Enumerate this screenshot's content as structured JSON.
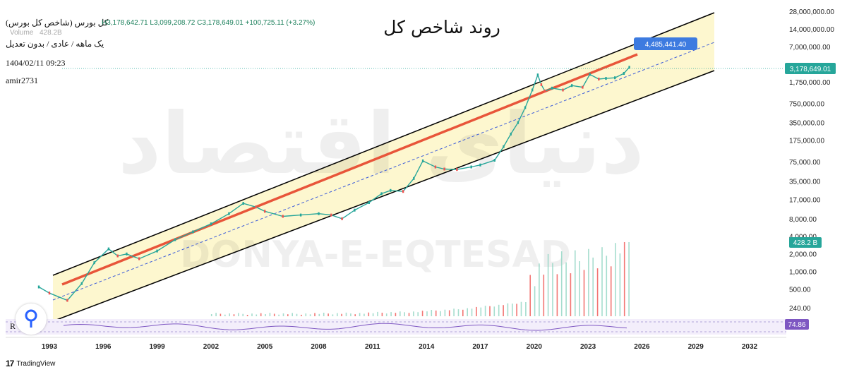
{
  "header": {
    "title": "روند شاخص کل",
    "instrument": "کل بورس (شاخص کل بورس)",
    "ohlc": "H3,178,642.71  L3,099,208.72  C3,178,649.01  +100,725.11 (+3.27%)",
    "volume_label": "Volume",
    "volume_value": "428.2B",
    "timeframe": "یک ماهه / عادی / بدون تعدیل",
    "datetime": "1404/02/11 09:23",
    "author": "amir2731"
  },
  "watermark": {
    "arabic": "دنیای اقتصاد",
    "latin": "DONYA-E-EQTESAD"
  },
  "footer": {
    "brand": "TradingView",
    "brand_logo": "17"
  },
  "badges": {
    "target": "4,485,441.40",
    "price": "3,178,649.01",
    "volume": "428.2 B",
    "rsi": "74.86",
    "rsi_label": "R"
  },
  "colors": {
    "channel_fill": "#fdf7cf",
    "channel_line": "#000000",
    "trend_line": "#e8553a",
    "mid_line": "#3b5bd9",
    "up": "#26a69a",
    "down": "#ef5350",
    "rsi": "#7e57c2",
    "target_badge": "#3d7be0",
    "price_badge": "#26a69a",
    "rsi_badge": "#7e57c2"
  },
  "chart_data": {
    "type": "line",
    "scale": "log",
    "x_ticks": [
      "1993",
      "1996",
      "1999",
      "2002",
      "2005",
      "2008",
      "2011",
      "2014",
      "2017",
      "2020",
      "2023",
      "2026",
      "2029",
      "2032"
    ],
    "y_ticks": [
      "28,000,000.00",
      "14,000,000.00",
      "7,000,000.00",
      "1,750,000.00",
      "750,000.00",
      "350,000.00",
      "175,000.00",
      "75,000.00",
      "35,000.00",
      "17,000.00",
      "8,000.00",
      "4,000.00",
      "2,000.00",
      "1,000.00",
      "500.00",
      "240.00"
    ],
    "y_tick_values": [
      28000000,
      14000000,
      7000000,
      1750000,
      750000,
      350000,
      175000,
      75000,
      35000,
      17000,
      8000,
      4000,
      2000,
      1000,
      500,
      240
    ],
    "ylim": [
      120,
      30000000
    ],
    "xlim": [
      1992.5,
      2034
    ],
    "series": [
      {
        "x": [
          1992.0,
          1993.0,
          1994.0,
          1994.8,
          1995.5,
          1996.3,
          1996.8,
          1997.3,
          1998.0,
          1999.0,
          2000.0,
          2001.0,
          2002.0,
          2003.0,
          2003.8,
          2004.5,
          2005.0,
          2006.0,
          2007.0,
          2008.0,
          2008.7,
          2009.3,
          2010.0,
          2010.8,
          2011.5,
          2012.0,
          2012.7,
          2013.3,
          2013.8,
          2014.5,
          2015.0,
          2015.7,
          2016.5,
          2017.0,
          2017.8,
          2018.3,
          2018.7,
          2019.1,
          2019.5,
          2019.9,
          2020.2,
          2020.4,
          2020.6,
          2021.0,
          2021.6,
          2022.1,
          2022.7,
          2023.1,
          2023.6,
          2024.0,
          2024.5,
          2025.0,
          2025.3
        ],
        "y": [
          560,
          440,
          330,
          640,
          1450,
          2500,
          1900,
          2050,
          1700,
          2300,
          3600,
          4900,
          6700,
          10000,
          15000,
          13000,
          11000,
          9000,
          9500,
          10000,
          9500,
          8200,
          11500,
          15500,
          22000,
          25000,
          24000,
          40000,
          80000,
          63000,
          58000,
          57000,
          63000,
          68000,
          82000,
          140000,
          230000,
          360000,
          650000,
          1300000,
          2350000,
          1600000,
          1250000,
          1400000,
          1300000,
          1550000,
          1450000,
          2400000,
          2000000,
          2050000,
          2100000,
          2500000,
          3178649
        ]
      }
    ],
    "rsi_value": 74.86,
    "volume_last_b": 428.2,
    "projected_target": 4485441.4,
    "last_price": 3178649.01,
    "title": "روند شاخص کل",
    "legend": "none",
    "grid": false
  }
}
